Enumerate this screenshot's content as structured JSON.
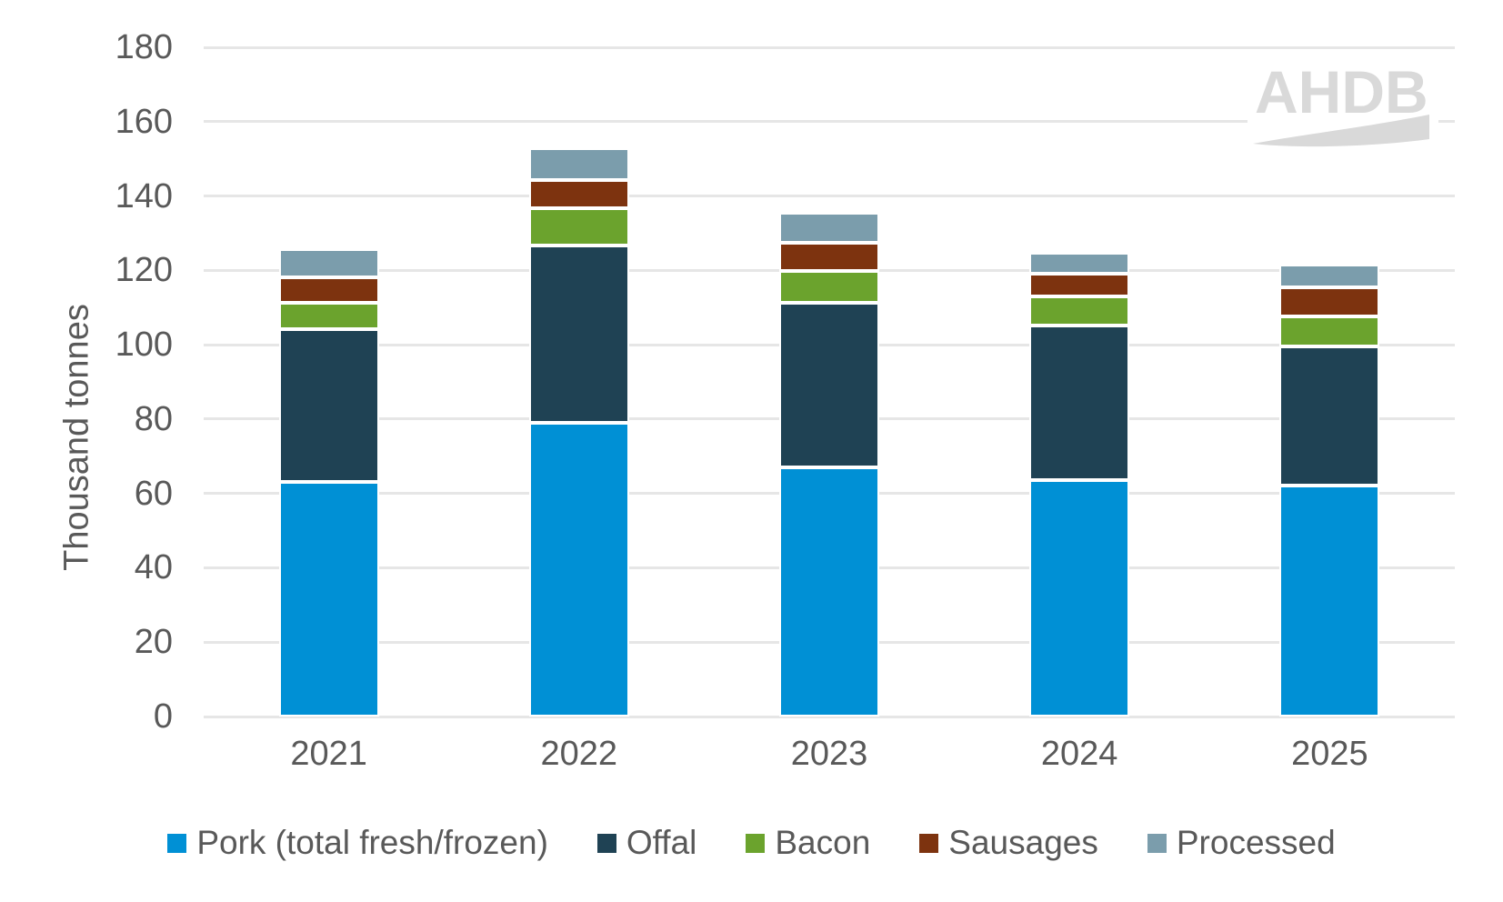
{
  "chart_data": {
    "type": "bar",
    "stacked": true,
    "title": "",
    "xlabel": "",
    "ylabel": "Thousand tonnes",
    "ylim": [
      0,
      180
    ],
    "ytick_step": 20,
    "grid": "horizontal",
    "legend_position": "bottom",
    "categories": [
      "2021",
      "2022",
      "2023",
      "2024",
      "2025"
    ],
    "series": [
      {
        "name": "Pork (total fresh/frozen)",
        "key": "pork",
        "color": "#0090d5",
        "values": [
          63.0,
          79.0,
          67.0,
          63.7,
          62.0
        ]
      },
      {
        "name": "Offal",
        "key": "offal",
        "color": "#1f4254",
        "values": [
          41.3,
          47.6,
          44.2,
          41.5,
          37.5
        ]
      },
      {
        "name": "Bacon",
        "key": "bacon",
        "color": "#6ba32d",
        "values": [
          7.0,
          10.0,
          8.7,
          7.8,
          8.2
        ]
      },
      {
        "name": "Sausages",
        "key": "sausages",
        "color": "#7d330f",
        "values": [
          6.9,
          7.6,
          7.4,
          6.2,
          7.7
        ]
      },
      {
        "name": "Processed",
        "key": "processed",
        "color": "#7b9dac",
        "values": [
          7.4,
          8.6,
          8.2,
          5.6,
          6.1
        ]
      }
    ]
  },
  "logo": {
    "text": "AHDB",
    "color": "#d9d9d9"
  },
  "colors": {
    "axis_text": "#595959",
    "gridline": "#e6e6e6",
    "background": "#ffffff",
    "segment_border": "#ffffff"
  }
}
